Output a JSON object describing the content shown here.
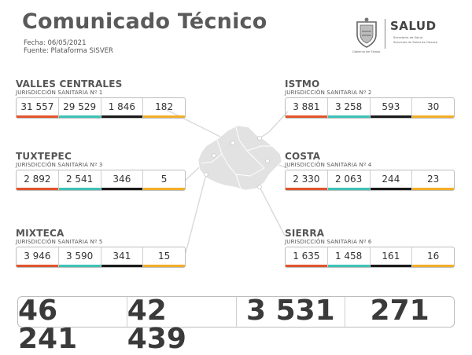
{
  "header": {
    "title": "Comunicado Técnico",
    "date": "Fecha: 06/05/2021",
    "source": "Fuente: Plataforma SISVER"
  },
  "branding": {
    "seal_caption": "Gobierno del Estado",
    "salud": "SALUD",
    "salud_line1": "Secretaría de Salud",
    "salud_line2": "Servicios de Salud de Oaxaca"
  },
  "colors": {
    "col1": "#e2542d",
    "col2": "#3ec2b6",
    "col3": "#1a1a1a",
    "col4": "#f2ae2a"
  },
  "regions": [
    {
      "name": "VALLES CENTRALES",
      "sub": "JURISDICCIÓN SANITARIA Nº 1",
      "values": [
        "31 557",
        "29 529",
        "1 846",
        "182"
      ]
    },
    {
      "name": "ISTMO",
      "sub": "JURISDICCIÓN SANITARIA Nº 2",
      "values": [
        "3 881",
        "3 258",
        "593",
        "30"
      ]
    },
    {
      "name": "TUXTEPEC",
      "sub": "JURISDICCIÓN SANITARIA Nº 3",
      "values": [
        "2 892",
        "2 541",
        "346",
        "5"
      ]
    },
    {
      "name": "COSTA",
      "sub": "JURISDICCIÓN SANITARIA Nº 4",
      "values": [
        "2 330",
        "2 063",
        "244",
        "23"
      ]
    },
    {
      "name": "MIXTECA",
      "sub": "JURISDICCIÓN SANITARIA Nº 5",
      "values": [
        "3 946",
        "3 590",
        "341",
        "15"
      ]
    },
    {
      "name": "SIERRA",
      "sub": "JURISDICCIÓN SANITARIA Nº 6",
      "values": [
        "1 635",
        "1 458",
        "161",
        "16"
      ]
    }
  ],
  "totals": [
    "46 241",
    "42 439",
    "3 531",
    "271"
  ]
}
